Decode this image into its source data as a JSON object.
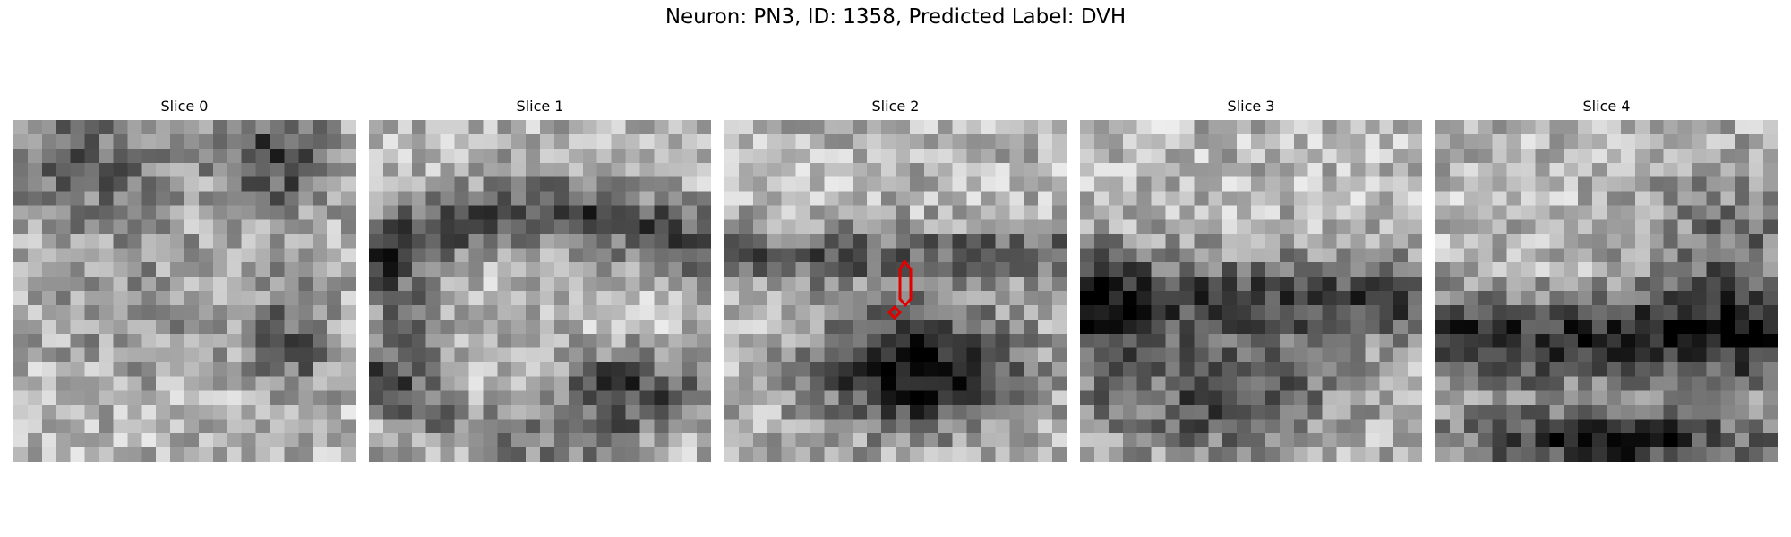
{
  "figure": {
    "title": "Neuron: PN3, ID: 1358, Predicted Label: DVH"
  },
  "panels": [
    {
      "title": "Slice 0",
      "texture": "noise-dark-corners"
    },
    {
      "title": "Slice 1",
      "texture": "dark-arc-band"
    },
    {
      "title": "Slice 2",
      "texture": "dark-lower-blob-with-contour"
    },
    {
      "title": "Slice 3",
      "texture": "dark-mid-lower-band"
    },
    {
      "title": "Slice 4",
      "texture": "dark-lower-half"
    }
  ],
  "colors": {
    "background": "#ffffff",
    "contour": "#e00000"
  }
}
